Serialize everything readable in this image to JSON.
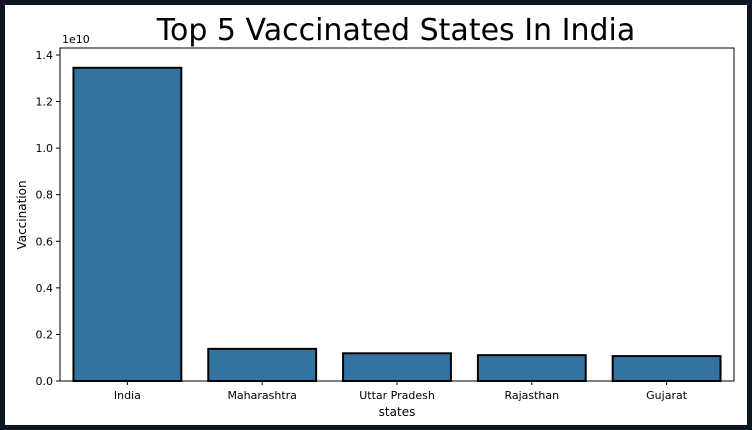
{
  "chart_data": {
    "type": "bar",
    "title": "Top 5 Vaccinated States In India",
    "xlabel": "states",
    "ylabel": "Vaccination",
    "offset_label": "1e10",
    "categories": [
      "India",
      "Maharashtra",
      "Uttar Pradesh",
      "Rajasthan",
      "Gujarat"
    ],
    "values": [
      13450000000,
      1380000000,
      1190000000,
      1110000000,
      1070000000
    ],
    "ylim": [
      0,
      14300000000
    ],
    "yticks": [
      0,
      2000000000,
      4000000000,
      6000000000,
      8000000000,
      10000000000,
      12000000000,
      14000000000
    ],
    "ytick_labels": [
      "0.0",
      "0.2",
      "0.4",
      "0.6",
      "0.8",
      "1.0",
      "1.2",
      "1.4"
    ],
    "grid": false,
    "bar_color": "#3274a1",
    "edge_color": "#000000"
  }
}
